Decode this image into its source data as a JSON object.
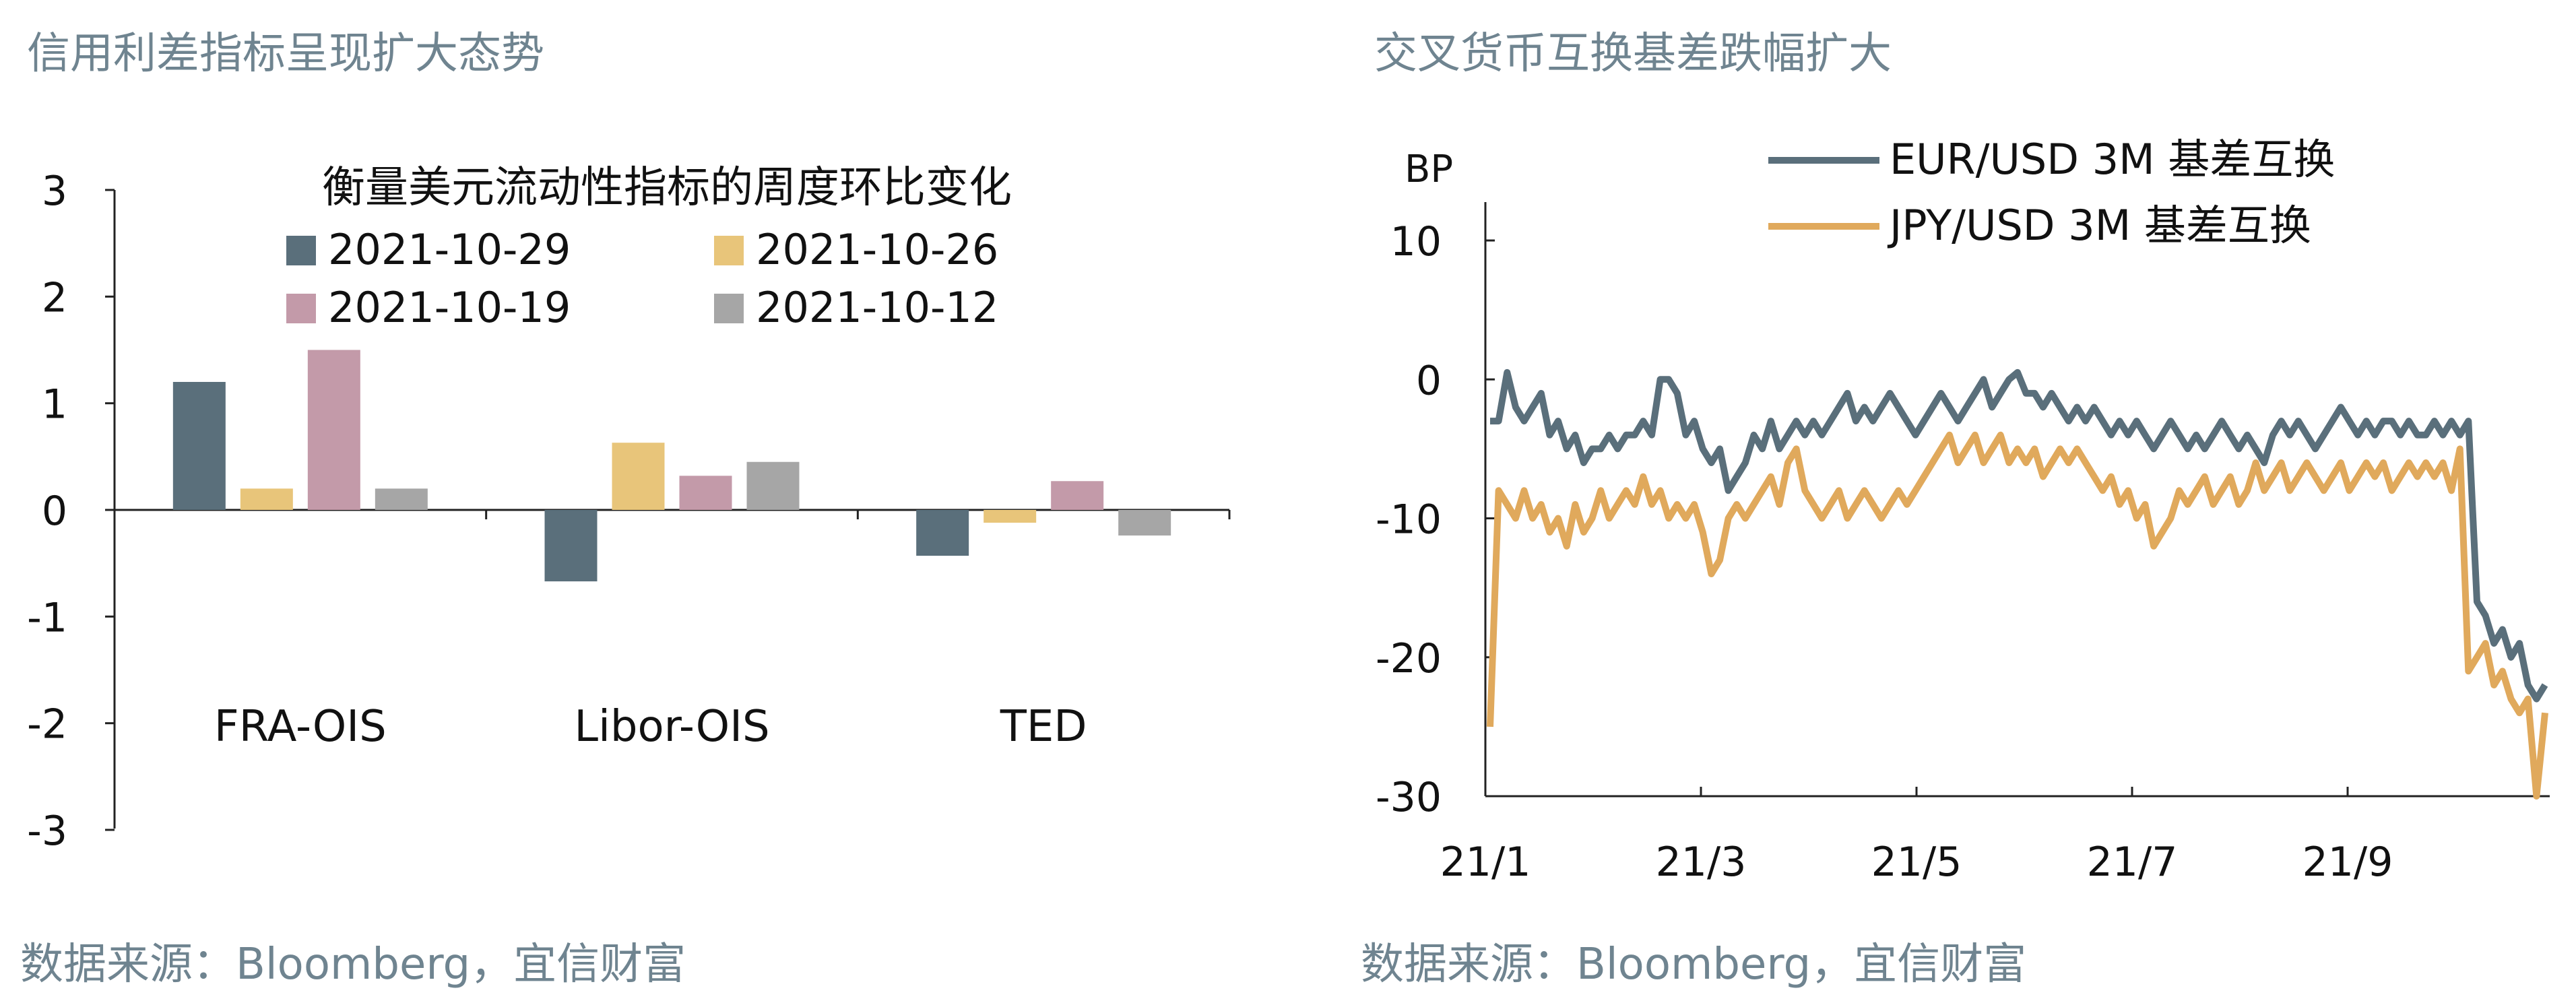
{
  "left_panel": {
    "title": "信用利差指标呈现扩大态势",
    "source": "数据来源：Bloomberg，宜信财富"
  },
  "right_panel": {
    "title": "交叉货币互换基差跌幅扩大",
    "source": "数据来源：Bloomberg，宜信财富"
  },
  "chart_data": [
    {
      "type": "bar",
      "title": "衡量美元流动性指标的周度环比变化",
      "categories": [
        "FRA-OIS",
        "Libor-OIS",
        "TED"
      ],
      "series": [
        {
          "name": "2021-10-29",
          "color": "#5a6f7b",
          "values": [
            1.2,
            -0.67,
            -0.43
          ]
        },
        {
          "name": "2021-10-26",
          "color": "#e8c57a",
          "values": [
            0.2,
            0.63,
            -0.12
          ]
        },
        {
          "name": "2021-10-19",
          "color": "#c39aa9",
          "values": [
            1.5,
            0.32,
            0.27
          ]
        },
        {
          "name": "2021-10-12",
          "color": "#a6a6a6",
          "values": [
            0.2,
            0.45,
            -0.24
          ]
        }
      ],
      "ylim": [
        -3,
        3
      ],
      "yticks": [
        "3",
        "2",
        "1",
        "0",
        "-1",
        "-2",
        "-3"
      ],
      "legend_position": "top"
    },
    {
      "type": "line",
      "ylabel": "BP",
      "ylim": [
        -30,
        10
      ],
      "yticks": [
        "10",
        "0",
        "-10",
        "-20",
        "-30"
      ],
      "xticks": [
        "21/1",
        "21/3",
        "21/5",
        "21/7",
        "21/9"
      ],
      "legend_position": "top",
      "series": [
        {
          "name": "EUR/USD 3M 基差互换",
          "color": "#5a6f7b",
          "values": [
            -3,
            -3,
            0.5,
            -2,
            -3,
            -2,
            -1,
            -4,
            -3,
            -5,
            -4,
            -6,
            -5,
            -5,
            -4,
            -5,
            -4,
            -4,
            -3,
            -4,
            0,
            0,
            -1,
            -4,
            -3,
            -5,
            -6,
            -5,
            -8,
            -7,
            -6,
            -4,
            -5,
            -3,
            -5,
            -4,
            -3,
            -4,
            -3,
            -4,
            -3,
            -2,
            -1,
            -3,
            -2,
            -3,
            -2,
            -1,
            -2,
            -3,
            -4,
            -3,
            -2,
            -1,
            -2,
            -3,
            -2,
            -1,
            0,
            -2,
            -1,
            0,
            0.5,
            -1,
            -1,
            -2,
            -1,
            -2,
            -3,
            -2,
            -3,
            -2,
            -3,
            -4,
            -3,
            -4,
            -3,
            -4,
            -5,
            -4,
            -3,
            -4,
            -5,
            -4,
            -5,
            -4,
            -3,
            -4,
            -5,
            -4,
            -5,
            -6,
            -4,
            -3,
            -4,
            -3,
            -4,
            -5,
            -4,
            -3,
            -2,
            -3,
            -4,
            -3,
            -4,
            -3,
            -3,
            -4,
            -3,
            -4,
            -4,
            -3,
            -4,
            -3,
            -4,
            -3,
            -16,
            -17,
            -19,
            -18,
            -20,
            -19,
            -22,
            -23,
            -22
          ]
        },
        {
          "name": "JPY/USD 3M 基差互换",
          "color": "#e0a95c",
          "values": [
            -25,
            -8,
            -9,
            -10,
            -8,
            -10,
            -9,
            -11,
            -10,
            -12,
            -9,
            -11,
            -10,
            -8,
            -10,
            -9,
            -8,
            -9,
            -7,
            -9,
            -8,
            -10,
            -9,
            -10,
            -9,
            -11,
            -14,
            -13,
            -10,
            -9,
            -10,
            -9,
            -8,
            -7,
            -9,
            -6,
            -5,
            -8,
            -9,
            -10,
            -9,
            -8,
            -10,
            -9,
            -8,
            -9,
            -10,
            -9,
            -8,
            -9,
            -8,
            -7,
            -6,
            -5,
            -4,
            -6,
            -5,
            -4,
            -6,
            -5,
            -4,
            -6,
            -5,
            -6,
            -5,
            -7,
            -6,
            -5,
            -6,
            -5,
            -6,
            -7,
            -8,
            -7,
            -9,
            -8,
            -10,
            -9,
            -12,
            -11,
            -10,
            -8,
            -9,
            -8,
            -7,
            -9,
            -8,
            -7,
            -9,
            -8,
            -6,
            -8,
            -7,
            -6,
            -8,
            -7,
            -6,
            -7,
            -8,
            -7,
            -6,
            -8,
            -7,
            -6,
            -7,
            -6,
            -8,
            -7,
            -6,
            -7,
            -6,
            -7,
            -6,
            -8,
            -5,
            -21,
            -20,
            -19,
            -22,
            -21,
            -23,
            -24,
            -23,
            -30,
            -24
          ]
        }
      ]
    }
  ]
}
